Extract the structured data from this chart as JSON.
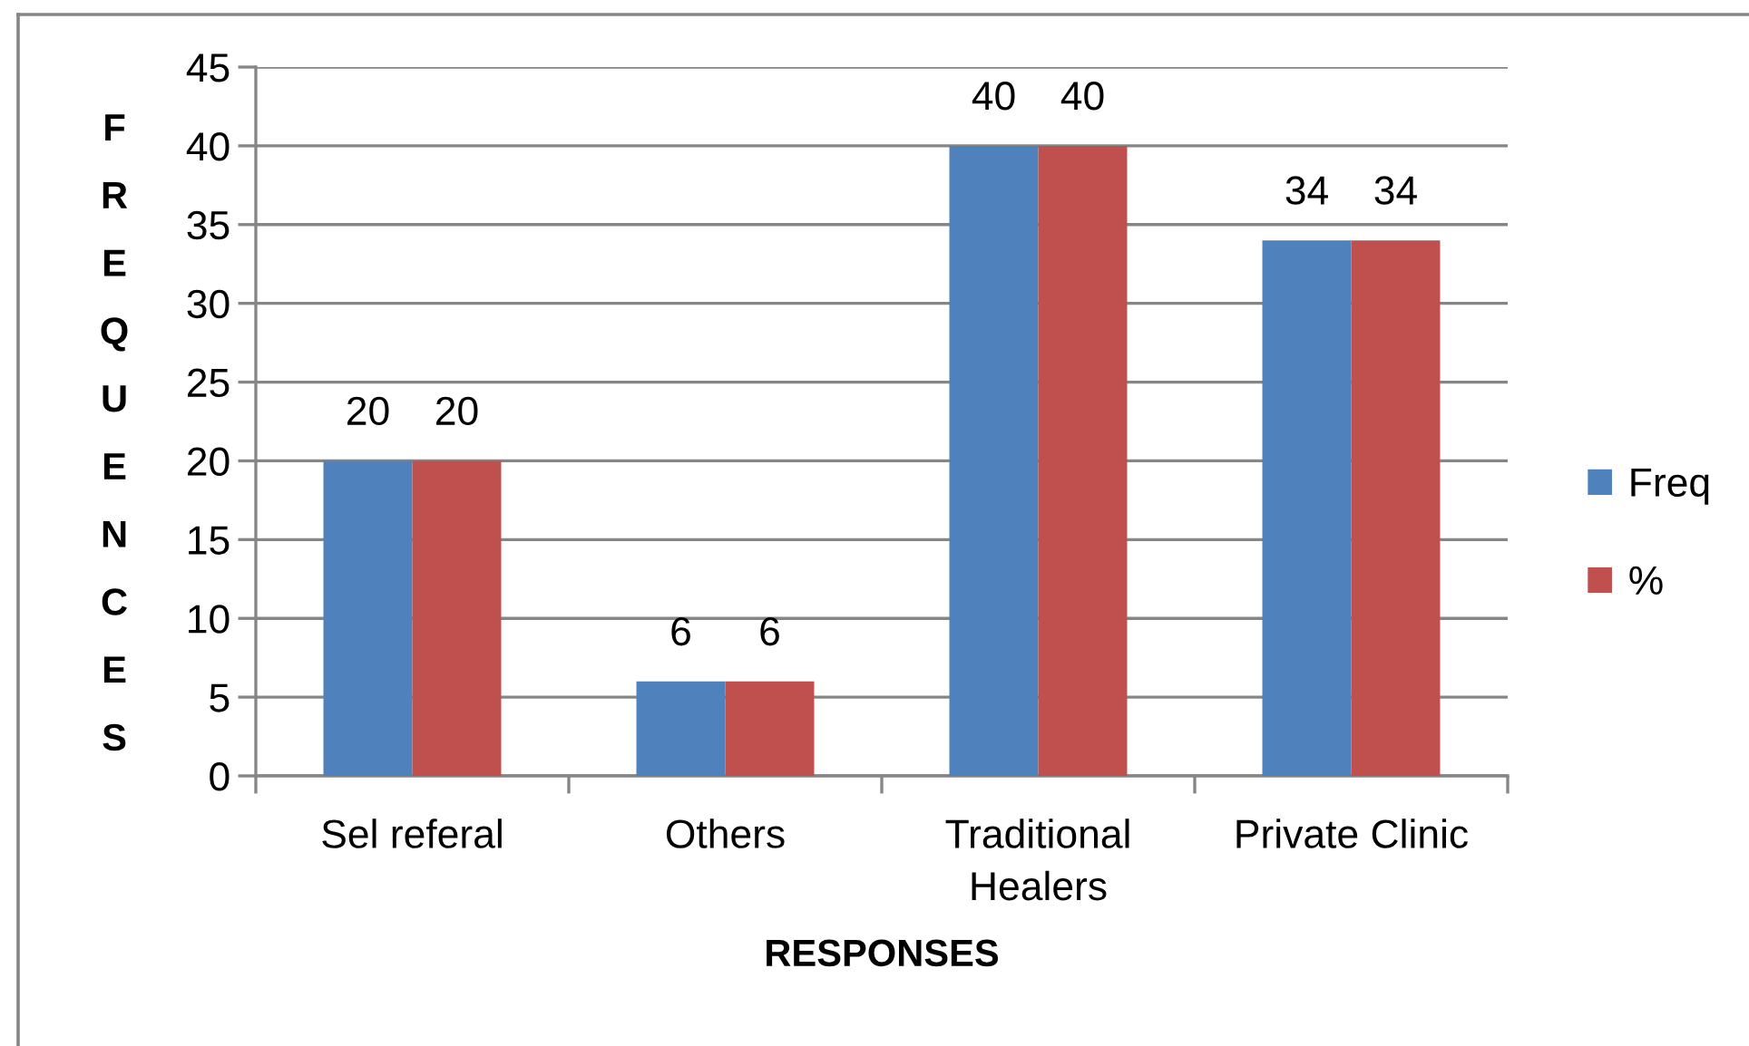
{
  "chart_data": {
    "type": "bar",
    "xlabel": "RESPONSES",
    "ylabel": "FREQUENCES",
    "categories": [
      "Sel referal",
      "Others",
      "Traditional\nHealers",
      "Private Clinic"
    ],
    "series": [
      {
        "name": "Freq",
        "color": "#4f81bd",
        "values": [
          20,
          6,
          40,
          34
        ]
      },
      {
        "name": "%",
        "color": "#c0504d",
        "values": [
          20,
          6,
          40,
          34
        ]
      }
    ],
    "ylim": [
      0,
      45
    ],
    "yticks": [
      0,
      5,
      10,
      15,
      20,
      25,
      30,
      35,
      40,
      45
    ],
    "grid": "y",
    "legend": "right",
    "data_labels": true
  }
}
